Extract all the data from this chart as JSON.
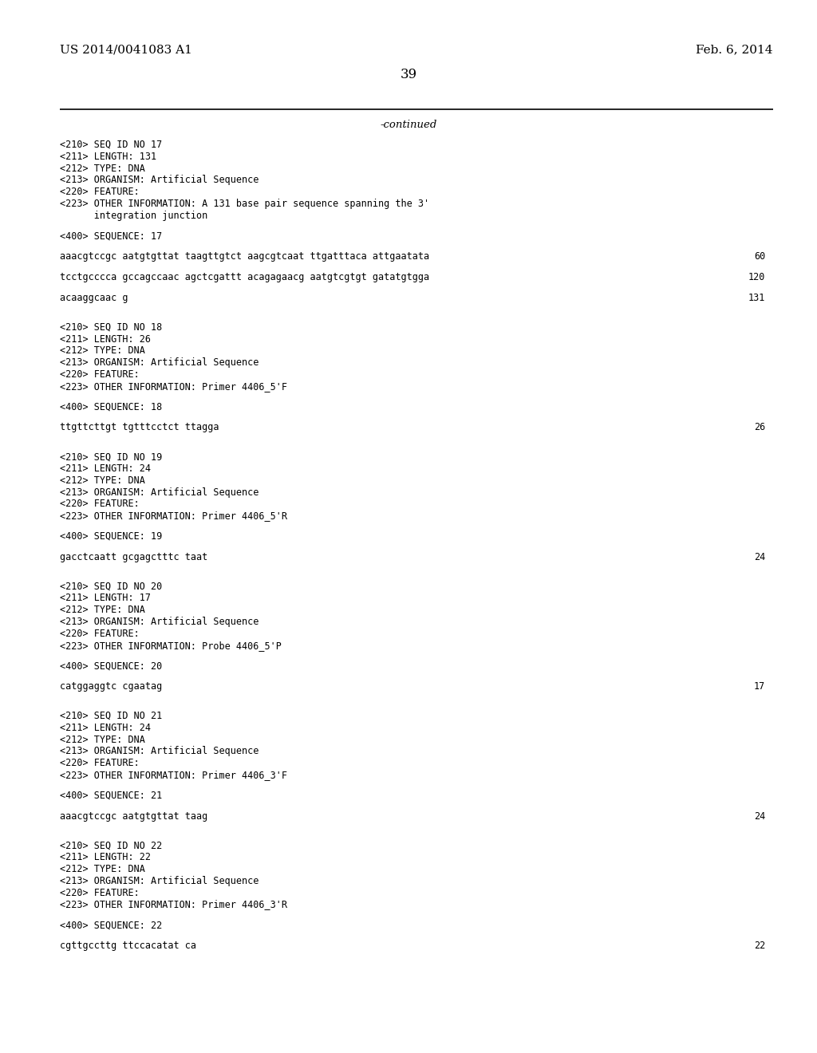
{
  "header_left": "US 2014/0041083 A1",
  "header_right": "Feb. 6, 2014",
  "page_number": "39",
  "continued_text": "-continued",
  "background_color": "#ffffff",
  "text_color": "#000000",
  "header_font_size": 11,
  "page_num_font_size": 12,
  "continued_font_size": 9.5,
  "mono_font_size": 8.5,
  "lines": [
    {
      "text": "<210> SEQ ID NO 17",
      "mono": true
    },
    {
      "text": "<211> LENGTH: 131",
      "mono": true
    },
    {
      "text": "<212> TYPE: DNA",
      "mono": true
    },
    {
      "text": "<213> ORGANISM: Artificial Sequence",
      "mono": true
    },
    {
      "text": "<220> FEATURE:",
      "mono": true
    },
    {
      "text": "<223> OTHER INFORMATION: A 131 base pair sequence spanning the 3'",
      "mono": true
    },
    {
      "text": "      integration junction",
      "mono": true
    },
    {
      "text": "",
      "mono": false
    },
    {
      "text": "<400> SEQUENCE: 17",
      "mono": true
    },
    {
      "text": "",
      "mono": false
    },
    {
      "text": "aaacgtccgc aatgtgttat taagttgtct aagcgtcaat ttgatttaca attgaatata",
      "mono": true,
      "number": "60"
    },
    {
      "text": "",
      "mono": false
    },
    {
      "text": "tcctgcccca gccagccaac agctcgattt acagagaacg aatgtcgtgt gatatgtgga",
      "mono": true,
      "number": "120"
    },
    {
      "text": "",
      "mono": false
    },
    {
      "text": "acaaggcaac g",
      "mono": true,
      "number": "131"
    },
    {
      "text": "",
      "mono": false
    },
    {
      "text": "",
      "mono": false
    },
    {
      "text": "<210> SEQ ID NO 18",
      "mono": true
    },
    {
      "text": "<211> LENGTH: 26",
      "mono": true
    },
    {
      "text": "<212> TYPE: DNA",
      "mono": true
    },
    {
      "text": "<213> ORGANISM: Artificial Sequence",
      "mono": true
    },
    {
      "text": "<220> FEATURE:",
      "mono": true
    },
    {
      "text": "<223> OTHER INFORMATION: Primer 4406_5'F",
      "mono": true
    },
    {
      "text": "",
      "mono": false
    },
    {
      "text": "<400> SEQUENCE: 18",
      "mono": true
    },
    {
      "text": "",
      "mono": false
    },
    {
      "text": "ttgttcttgt tgtttcctct ttagga",
      "mono": true,
      "number": "26"
    },
    {
      "text": "",
      "mono": false
    },
    {
      "text": "",
      "mono": false
    },
    {
      "text": "<210> SEQ ID NO 19",
      "mono": true
    },
    {
      "text": "<211> LENGTH: 24",
      "mono": true
    },
    {
      "text": "<212> TYPE: DNA",
      "mono": true
    },
    {
      "text": "<213> ORGANISM: Artificial Sequence",
      "mono": true
    },
    {
      "text": "<220> FEATURE:",
      "mono": true
    },
    {
      "text": "<223> OTHER INFORMATION: Primer 4406_5'R",
      "mono": true
    },
    {
      "text": "",
      "mono": false
    },
    {
      "text": "<400> SEQUENCE: 19",
      "mono": true
    },
    {
      "text": "",
      "mono": false
    },
    {
      "text": "gacctcaatt gcgagctttc taat",
      "mono": true,
      "number": "24"
    },
    {
      "text": "",
      "mono": false
    },
    {
      "text": "",
      "mono": false
    },
    {
      "text": "<210> SEQ ID NO 20",
      "mono": true
    },
    {
      "text": "<211> LENGTH: 17",
      "mono": true
    },
    {
      "text": "<212> TYPE: DNA",
      "mono": true
    },
    {
      "text": "<213> ORGANISM: Artificial Sequence",
      "mono": true
    },
    {
      "text": "<220> FEATURE:",
      "mono": true
    },
    {
      "text": "<223> OTHER INFORMATION: Probe 4406_5'P",
      "mono": true
    },
    {
      "text": "",
      "mono": false
    },
    {
      "text": "<400> SEQUENCE: 20",
      "mono": true
    },
    {
      "text": "",
      "mono": false
    },
    {
      "text": "catggaggtc cgaatag",
      "mono": true,
      "number": "17"
    },
    {
      "text": "",
      "mono": false
    },
    {
      "text": "",
      "mono": false
    },
    {
      "text": "<210> SEQ ID NO 21",
      "mono": true
    },
    {
      "text": "<211> LENGTH: 24",
      "mono": true
    },
    {
      "text": "<212> TYPE: DNA",
      "mono": true
    },
    {
      "text": "<213> ORGANISM: Artificial Sequence",
      "mono": true
    },
    {
      "text": "<220> FEATURE:",
      "mono": true
    },
    {
      "text": "<223> OTHER INFORMATION: Primer 4406_3'F",
      "mono": true
    },
    {
      "text": "",
      "mono": false
    },
    {
      "text": "<400> SEQUENCE: 21",
      "mono": true
    },
    {
      "text": "",
      "mono": false
    },
    {
      "text": "aaacgtccgc aatgtgttat taag",
      "mono": true,
      "number": "24"
    },
    {
      "text": "",
      "mono": false
    },
    {
      "text": "",
      "mono": false
    },
    {
      "text": "<210> SEQ ID NO 22",
      "mono": true
    },
    {
      "text": "<211> LENGTH: 22",
      "mono": true
    },
    {
      "text": "<212> TYPE: DNA",
      "mono": true
    },
    {
      "text": "<213> ORGANISM: Artificial Sequence",
      "mono": true
    },
    {
      "text": "<220> FEATURE:",
      "mono": true
    },
    {
      "text": "<223> OTHER INFORMATION: Primer 4406_3'R",
      "mono": true
    },
    {
      "text": "",
      "mono": false
    },
    {
      "text": "<400> SEQUENCE: 22",
      "mono": true
    },
    {
      "text": "",
      "mono": false
    },
    {
      "text": "cgttgccttg ttccacatat ca",
      "mono": true,
      "number": "22"
    }
  ]
}
